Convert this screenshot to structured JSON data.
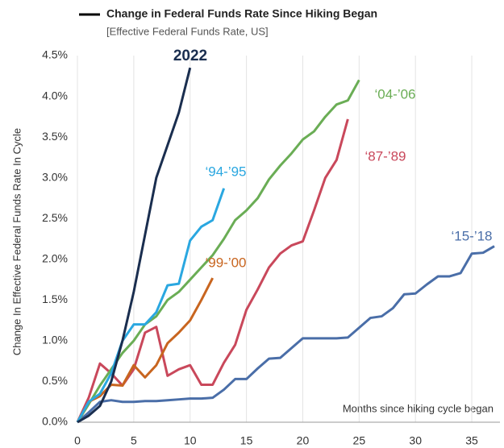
{
  "chart_data": {
    "type": "line",
    "title": "Change in Federal Funds Rate Since Hiking Began",
    "subtitle": "[Effective Federal Funds Rate, US]",
    "y_label": "Change In Effective Federal Funds Rate In Cycle",
    "x_label": "Months since hiking cycle began",
    "x": [
      0,
      1,
      2,
      3,
      4,
      5,
      6,
      7,
      8,
      9,
      10,
      11,
      12,
      13,
      14,
      15,
      16,
      17,
      18,
      19,
      20,
      21,
      22,
      23,
      24,
      25,
      26,
      27,
      28,
      29,
      30,
      31,
      32,
      33,
      34,
      35,
      36,
      37
    ],
    "xlim": [
      0,
      37.5
    ],
    "xticks": [
      0,
      5,
      10,
      15,
      20,
      25,
      30,
      35
    ],
    "ylim": [
      0,
      4.5
    ],
    "yticks": [
      {
        "value": 0,
        "label": "0.0%"
      },
      {
        "value": 0.5,
        "label": "0.5%"
      },
      {
        "value": 1,
        "label": "1.0%"
      },
      {
        "value": 1.5,
        "label": "1.5%"
      },
      {
        "value": 2,
        "label": "2.0%"
      },
      {
        "value": 2.5,
        "label": "2.5%"
      },
      {
        "value": 3,
        "label": "3.0%"
      },
      {
        "value": 3.5,
        "label": "3.5%"
      },
      {
        "value": 4,
        "label": "4.0%"
      },
      {
        "value": 4.5,
        "label": "4.5%"
      }
    ],
    "grid": "x",
    "series": [
      {
        "name": "‘15-’18",
        "color": "#4a6ea8",
        "values": [
          0,
          0.12,
          0.25,
          0.27,
          0.25,
          0.25,
          0.26,
          0.26,
          0.27,
          0.28,
          0.29,
          0.29,
          0.3,
          0.4,
          0.53,
          0.53,
          0.66,
          0.78,
          0.79,
          0.91,
          1.03,
          1.03,
          1.03,
          1.03,
          1.04,
          1.16,
          1.28,
          1.3,
          1.4,
          1.57,
          1.58,
          1.69,
          1.79,
          1.79,
          1.83,
          2.07,
          2.08,
          2.16
        ]
      },
      {
        "name": "‘87-’89",
        "color": "#c9485b",
        "values": [
          0,
          0.3,
          0.72,
          0.6,
          0.45,
          0.65,
          1.1,
          1.17,
          0.57,
          0.65,
          0.7,
          0.46,
          0.46,
          0.73,
          0.95,
          1.38,
          1.63,
          1.9,
          2.07,
          2.17,
          2.22,
          2.6,
          3.0,
          3.22,
          3.72,
          null,
          null,
          null,
          null,
          null,
          null,
          null,
          null,
          null,
          null,
          null,
          null,
          null
        ]
      },
      {
        "name": "‘04-’06",
        "color": "#6aad55",
        "values": [
          0,
          0.22,
          0.45,
          0.65,
          0.85,
          1.0,
          1.2,
          1.3,
          1.5,
          1.6,
          1.75,
          1.9,
          2.05,
          2.25,
          2.48,
          2.6,
          2.75,
          2.98,
          3.15,
          3.3,
          3.47,
          3.57,
          3.75,
          3.9,
          3.95,
          4.2,
          null,
          null,
          null,
          null,
          null,
          null,
          null,
          null,
          null,
          null,
          null,
          null
        ]
      },
      {
        "name": "‘99-’00",
        "color": "#c8651f",
        "values": [
          0,
          0.25,
          0.32,
          0.46,
          0.45,
          0.7,
          0.55,
          0.7,
          0.97,
          1.1,
          1.25,
          1.5,
          1.77,
          null,
          null,
          null,
          null,
          null,
          null,
          null,
          null,
          null,
          null,
          null,
          null,
          null,
          null,
          null,
          null,
          null,
          null,
          null,
          null,
          null,
          null,
          null,
          null,
          null
        ]
      },
      {
        "name": "‘94-’95",
        "color": "#2aa7e0",
        "values": [
          0,
          0.25,
          0.35,
          0.6,
          1.0,
          1.2,
          1.2,
          1.35,
          1.68,
          1.7,
          2.23,
          2.4,
          2.48,
          2.87,
          null,
          null,
          null,
          null,
          null,
          null,
          null,
          null,
          null,
          null,
          null,
          null,
          null,
          null,
          null,
          null,
          null,
          null,
          null,
          null,
          null,
          null,
          null,
          null
        ]
      },
      {
        "name": "2022",
        "color": "#1a2e4f",
        "values": [
          0,
          0.08,
          0.2,
          0.5,
          1.0,
          1.6,
          2.3,
          3.0,
          3.4,
          3.8,
          4.35,
          null,
          null,
          null,
          null,
          null,
          null,
          null,
          null,
          null,
          null,
          null,
          null,
          null,
          null,
          null,
          null,
          null,
          null,
          null,
          null,
          null,
          null,
          null,
          null,
          null,
          null,
          null
        ]
      }
    ]
  }
}
